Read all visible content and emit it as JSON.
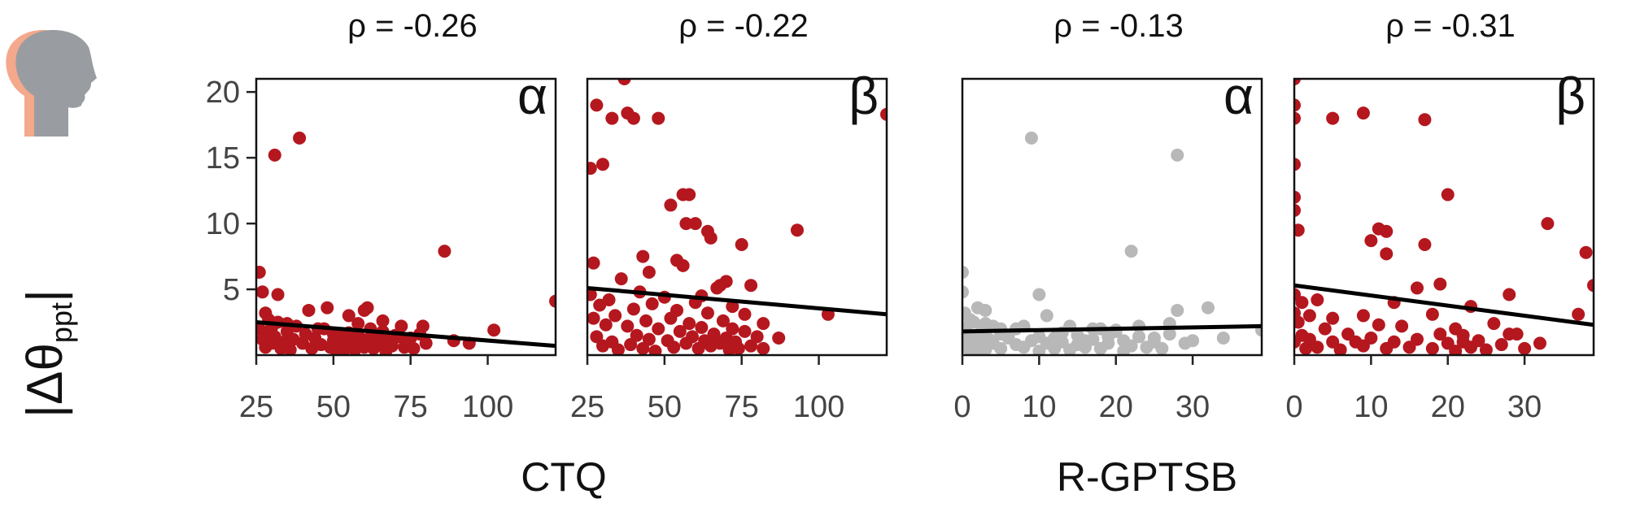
{
  "colors": {
    "red": "#b5171f",
    "gray": "#b8b8b8",
    "fit": "#000000",
    "head_front": "#999da1",
    "head_back": "#f4a88c"
  },
  "icon": "head-profile-icon",
  "y_label": "|Δθ",
  "y_label_sub": "ppt",
  "group_labels": [
    "CTQ",
    "R-GPTSB"
  ],
  "chart_data": [
    {
      "type": "scatter",
      "title": "ρ = -0.26",
      "symbol": "α",
      "group": "CTQ",
      "color": "red",
      "xlim": [
        25,
        122
      ],
      "ylim": [
        0,
        21
      ],
      "xticks": [
        25,
        50,
        75,
        100
      ],
      "yticks": [
        5,
        10,
        15,
        20
      ],
      "fit": [
        [
          25,
          2.5
        ],
        [
          122,
          0.7
        ]
      ],
      "points": [
        [
          26,
          6.3
        ],
        [
          27,
          4.8
        ],
        [
          28,
          3.2
        ],
        [
          29,
          2.7
        ],
        [
          31,
          15.2
        ],
        [
          32,
          4.6
        ],
        [
          35,
          2.4
        ],
        [
          39,
          16.5
        ],
        [
          42,
          3.4
        ],
        [
          45,
          2.0
        ],
        [
          48,
          3.6
        ],
        [
          50,
          1.6
        ],
        [
          55,
          3.0
        ],
        [
          58,
          2.4
        ],
        [
          60,
          3.4
        ],
        [
          61,
          3.6
        ],
        [
          66,
          2.6
        ],
        [
          70,
          1.5
        ],
        [
          72,
          2.2
        ],
        [
          75,
          1.3
        ],
        [
          79,
          2.2
        ],
        [
          86,
          7.9
        ],
        [
          89,
          1.1
        ],
        [
          94,
          0.9
        ],
        [
          102,
          1.9
        ],
        [
          122,
          4.1
        ],
        [
          26,
          2.0
        ],
        [
          27,
          1.2
        ],
        [
          28,
          0.6
        ],
        [
          29,
          1.6
        ],
        [
          30,
          2.1
        ],
        [
          30,
          0.9
        ],
        [
          31,
          1.4
        ],
        [
          32,
          2.5
        ],
        [
          33,
          0.5
        ],
        [
          34,
          1.0
        ],
        [
          35,
          1.8
        ],
        [
          36,
          0.4
        ],
        [
          37,
          1.2
        ],
        [
          38,
          2.2
        ],
        [
          40,
          0.9
        ],
        [
          41,
          1.6
        ],
        [
          43,
          0.5
        ],
        [
          44,
          1.3
        ],
        [
          46,
          0.8
        ],
        [
          47,
          2.0
        ],
        [
          49,
          0.6
        ],
        [
          50,
          1.1
        ],
        [
          51,
          0.3
        ],
        [
          52,
          1.4
        ],
        [
          53,
          0.9
        ],
        [
          54,
          0.5
        ],
        [
          55,
          1.7
        ],
        [
          56,
          1.0
        ],
        [
          57,
          0.4
        ],
        [
          58,
          1.5
        ],
        [
          59,
          0.8
        ],
        [
          60,
          0.6
        ],
        [
          61,
          1.2
        ],
        [
          62,
          2.0
        ],
        [
          63,
          0.5
        ],
        [
          64,
          1.4
        ],
        [
          65,
          0.9
        ],
        [
          66,
          1.8
        ],
        [
          67,
          0.3
        ],
        [
          68,
          1.1
        ],
        [
          69,
          0.7
        ],
        [
          71,
          1.4
        ],
        [
          73,
          0.6
        ],
        [
          74,
          1.0
        ],
        [
          76,
          0.5
        ],
        [
          78,
          1.6
        ],
        [
          80,
          0.9
        ]
      ]
    },
    {
      "type": "scatter",
      "title": "ρ = -0.22",
      "symbol": "β",
      "group": "CTQ",
      "color": "red",
      "xlim": [
        25,
        122
      ],
      "ylim": [
        0,
        21
      ],
      "xticks": [
        25,
        50,
        75,
        100
      ],
      "yticks": [],
      "fit": [
        [
          25,
          5.1
        ],
        [
          122,
          3.1
        ]
      ],
      "points": [
        [
          26,
          14.2
        ],
        [
          27,
          7.0
        ],
        [
          28,
          19.0
        ],
        [
          30,
          14.5
        ],
        [
          33,
          18.0
        ],
        [
          37,
          21.0
        ],
        [
          38,
          18.4
        ],
        [
          40,
          18.0
        ],
        [
          43,
          7.5
        ],
        [
          45,
          6.3
        ],
        [
          48,
          18.0
        ],
        [
          52,
          11.4
        ],
        [
          54,
          7.2
        ],
        [
          56,
          12.2
        ],
        [
          57,
          10.0
        ],
        [
          58,
          12.2
        ],
        [
          60,
          10.0
        ],
        [
          62,
          4.5
        ],
        [
          64,
          9.4
        ],
        [
          65,
          8.9
        ],
        [
          68,
          5.3
        ],
        [
          70,
          5.6
        ],
        [
          72,
          3.7
        ],
        [
          75,
          8.4
        ],
        [
          76,
          3.1
        ],
        [
          78,
          5.3
        ],
        [
          82,
          2.4
        ],
        [
          87,
          1.3
        ],
        [
          93,
          9.5
        ],
        [
          103,
          3.1
        ],
        [
          122,
          18.3
        ],
        [
          26,
          4.6
        ],
        [
          27,
          2.8
        ],
        [
          28,
          1.4
        ],
        [
          29,
          3.8
        ],
        [
          30,
          0.7
        ],
        [
          31,
          2.3
        ],
        [
          32,
          4.2
        ],
        [
          33,
          1.0
        ],
        [
          34,
          3.0
        ],
        [
          35,
          0.4
        ],
        [
          36,
          5.8
        ],
        [
          38,
          2.2
        ],
        [
          39,
          0.8
        ],
        [
          40,
          3.5
        ],
        [
          41,
          1.5
        ],
        [
          42,
          4.8
        ],
        [
          43,
          0.5
        ],
        [
          44,
          2.6
        ],
        [
          45,
          1.2
        ],
        [
          46,
          3.9
        ],
        [
          47,
          0.3
        ],
        [
          48,
          2.0
        ],
        [
          50,
          4.4
        ],
        [
          51,
          1.1
        ],
        [
          52,
          2.8
        ],
        [
          53,
          0.6
        ],
        [
          54,
          3.4
        ],
        [
          55,
          1.8
        ],
        [
          56,
          6.8
        ],
        [
          57,
          0.9
        ],
        [
          58,
          2.4
        ],
        [
          59,
          1.4
        ],
        [
          60,
          4.0
        ],
        [
          61,
          0.5
        ],
        [
          62,
          2.1
        ],
        [
          63,
          1.1
        ],
        [
          64,
          3.2
        ],
        [
          65,
          0.7
        ],
        [
          66,
          1.6
        ],
        [
          67,
          5.1
        ],
        [
          68,
          0.9
        ],
        [
          69,
          2.6
        ],
        [
          70,
          1.3
        ],
        [
          71,
          0.4
        ],
        [
          72,
          2.0
        ],
        [
          73,
          1.0
        ],
        [
          74,
          0.5
        ],
        [
          76,
          1.8
        ],
        [
          78,
          0.7
        ],
        [
          80,
          1.4
        ],
        [
          82,
          0.5
        ]
      ]
    },
    {
      "type": "scatter",
      "title": "ρ = -0.13",
      "symbol": "α",
      "group": "R-GPTSB",
      "color": "gray",
      "xlim": [
        0,
        39
      ],
      "ylim": [
        0,
        21
      ],
      "xticks": [
        0,
        10,
        20,
        30
      ],
      "yticks": [],
      "fit": [
        [
          0,
          1.8
        ],
        [
          39,
          2.2
        ]
      ],
      "points": [
        [
          0,
          6.3
        ],
        [
          0,
          4.8
        ],
        [
          0.3,
          3.2
        ],
        [
          1,
          2.7
        ],
        [
          2,
          3.6
        ],
        [
          3,
          2.4
        ],
        [
          3,
          3.4
        ],
        [
          5,
          2.0
        ],
        [
          6,
          1.5
        ],
        [
          8,
          2.2
        ],
        [
          9,
          16.5
        ],
        [
          10,
          4.6
        ],
        [
          11,
          3.0
        ],
        [
          12,
          1.3
        ],
        [
          14,
          2.2
        ],
        [
          16,
          1.1
        ],
        [
          18,
          2.0
        ],
        [
          20,
          1.9
        ],
        [
          22,
          7.9
        ],
        [
          23,
          2.2
        ],
        [
          25,
          1.3
        ],
        [
          27,
          2.4
        ],
        [
          28,
          15.2
        ],
        [
          28,
          3.4
        ],
        [
          30,
          1.1
        ],
        [
          32,
          3.6
        ],
        [
          34,
          1.3
        ],
        [
          39,
          1.9
        ],
        [
          0,
          2.0
        ],
        [
          0,
          1.2
        ],
        [
          0,
          0.6
        ],
        [
          0,
          1.6
        ],
        [
          0.5,
          2.1
        ],
        [
          0.5,
          0.9
        ],
        [
          1,
          1.4
        ],
        [
          1,
          0.4
        ],
        [
          1.5,
          2.5
        ],
        [
          2,
          0.5
        ],
        [
          2,
          1.0
        ],
        [
          2.5,
          1.8
        ],
        [
          3,
          0.4
        ],
        [
          3.5,
          1.2
        ],
        [
          4,
          2.2
        ],
        [
          4,
          0.9
        ],
        [
          5,
          1.6
        ],
        [
          5,
          0.5
        ],
        [
          6,
          1.3
        ],
        [
          7,
          0.8
        ],
        [
          7,
          2.0
        ],
        [
          8,
          0.6
        ],
        [
          9,
          1.1
        ],
        [
          10,
          0.3
        ],
        [
          10,
          1.4
        ],
        [
          11,
          0.9
        ],
        [
          12,
          0.5
        ],
        [
          13,
          1.7
        ],
        [
          13,
          1.0
        ],
        [
          14,
          0.4
        ],
        [
          15,
          1.5
        ],
        [
          15,
          0.8
        ],
        [
          16,
          0.6
        ],
        [
          17,
          1.2
        ],
        [
          17,
          2.0
        ],
        [
          18,
          0.5
        ],
        [
          19,
          1.4
        ],
        [
          19,
          0.9
        ],
        [
          20,
          1.8
        ],
        [
          21,
          0.3
        ],
        [
          21,
          1.1
        ],
        [
          22,
          0.7
        ],
        [
          23,
          1.4
        ],
        [
          24,
          0.6
        ],
        [
          25,
          1.0
        ],
        [
          26,
          0.5
        ],
        [
          27,
          1.6
        ],
        [
          29,
          0.9
        ]
      ]
    },
    {
      "type": "scatter",
      "title": "ρ = -0.31",
      "symbol": "β",
      "group": "R-GPTSB",
      "color": "red",
      "xlim": [
        0,
        39
      ],
      "ylim": [
        0,
        21
      ],
      "xticks": [
        0,
        10,
        20,
        30
      ],
      "yticks": [],
      "fit": [
        [
          0,
          5.3
        ],
        [
          39,
          2.3
        ]
      ],
      "points": [
        [
          0,
          21.0
        ],
        [
          0,
          19.0
        ],
        [
          0,
          18.0
        ],
        [
          0,
          14.5
        ],
        [
          0,
          12.0
        ],
        [
          0,
          11.0
        ],
        [
          0.5,
          9.5
        ],
        [
          5,
          18.0
        ],
        [
          9,
          18.4
        ],
        [
          10,
          8.7
        ],
        [
          11,
          9.6
        ],
        [
          12,
          9.4
        ],
        [
          12,
          7.7
        ],
        [
          13,
          4.0
        ],
        [
          16,
          5.1
        ],
        [
          17,
          17.9
        ],
        [
          17,
          8.4
        ],
        [
          18,
          3.1
        ],
        [
          19,
          5.4
        ],
        [
          20,
          12.2
        ],
        [
          21,
          2.0
        ],
        [
          22,
          1.0
        ],
        [
          23,
          3.7
        ],
        [
          26,
          2.4
        ],
        [
          28,
          4.6
        ],
        [
          29,
          1.6
        ],
        [
          33,
          10.0
        ],
        [
          37,
          3.1
        ],
        [
          38,
          7.8
        ],
        [
          39,
          5.3
        ],
        [
          0,
          4.6
        ],
        [
          0,
          3.2
        ],
        [
          0,
          1.0
        ],
        [
          0.5,
          2.5
        ],
        [
          1,
          4.0
        ],
        [
          1,
          1.5
        ],
        [
          1.5,
          0.5
        ],
        [
          2,
          3.0
        ],
        [
          2,
          1.2
        ],
        [
          3,
          4.2
        ],
        [
          3,
          0.6
        ],
        [
          4,
          2.0
        ],
        [
          5,
          1.0
        ],
        [
          5,
          2.8
        ],
        [
          6,
          0.4
        ],
        [
          7,
          1.6
        ],
        [
          8,
          1.0
        ],
        [
          9,
          3.0
        ],
        [
          9,
          0.7
        ],
        [
          10,
          1.3
        ],
        [
          11,
          2.3
        ],
        [
          12,
          0.5
        ],
        [
          13,
          1.0
        ],
        [
          14,
          2.2
        ],
        [
          15,
          0.6
        ],
        [
          16,
          1.2
        ],
        [
          18,
          0.5
        ],
        [
          19,
          1.6
        ],
        [
          20,
          0.9
        ],
        [
          21,
          0.3
        ],
        [
          22,
          1.5
        ],
        [
          23,
          0.6
        ],
        [
          24,
          1.1
        ],
        [
          25,
          0.4
        ],
        [
          27,
          0.8
        ],
        [
          28,
          1.6
        ],
        [
          30,
          0.5
        ],
        [
          32,
          0.9
        ]
      ]
    }
  ]
}
